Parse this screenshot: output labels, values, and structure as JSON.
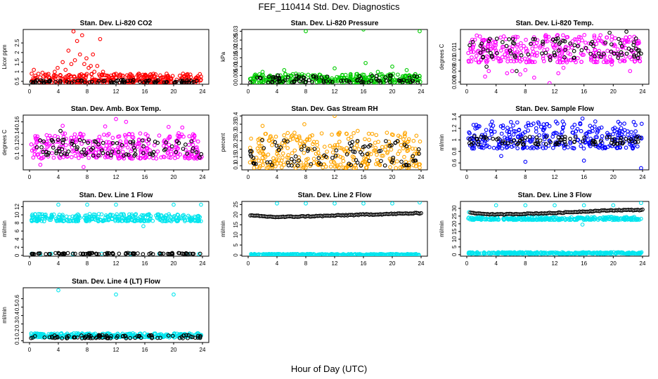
{
  "figure": {
    "title": "FEF_110414  Std. Dev. Diagnostics",
    "xlabel": "Hour of Day (UTC)"
  },
  "chart_data": [
    {
      "type": "scatter",
      "title": "Stan. Dev. Li-820 CO2",
      "ylabel": "Licor ppm",
      "xlim": [
        0,
        24
      ],
      "ylim": [
        0.35,
        3.2
      ],
      "xticks": [
        0,
        4,
        8,
        12,
        16,
        20,
        24
      ],
      "yticks": [
        0.5,
        1.0,
        1.5,
        2.0,
        2.5
      ],
      "series": [
        {
          "color": "#ff0000",
          "band": [
            0.4,
            0.9
          ],
          "points": [
            [
              0.3,
              0.9
            ],
            [
              0.6,
              1.1
            ],
            [
              1.8,
              0.95
            ],
            [
              2.2,
              0.8
            ],
            [
              2.8,
              0.7
            ],
            [
              3.5,
              1.0
            ],
            [
              3.9,
              1.2
            ],
            [
              4.3,
              0.8
            ],
            [
              4.6,
              1.5
            ],
            [
              5.0,
              1.1
            ],
            [
              5.4,
              2.1
            ],
            [
              5.8,
              1.4
            ],
            [
              6.1,
              3.1
            ],
            [
              6.3,
              1.6
            ],
            [
              6.6,
              2.6
            ],
            [
              7.0,
              1.9
            ],
            [
              7.3,
              2.9
            ],
            [
              7.6,
              1.4
            ],
            [
              7.9,
              1.7
            ],
            [
              8.2,
              1.2
            ],
            [
              8.5,
              1.3
            ],
            [
              8.8,
              1.9
            ],
            [
              9.0,
              1.0
            ],
            [
              9.4,
              1.3
            ],
            [
              9.8,
              2.7
            ],
            [
              10.2,
              1.0
            ],
            [
              10.8,
              0.8
            ],
            [
              11.3,
              0.8
            ],
            [
              12.5,
              0.7
            ],
            [
              13.2,
              0.6
            ],
            [
              14.0,
              0.7
            ],
            [
              15.1,
              0.65
            ],
            [
              16.3,
              0.7
            ],
            [
              17.5,
              0.6
            ],
            [
              18.3,
              0.7
            ],
            [
              19.6,
              0.6
            ],
            [
              21.0,
              0.6
            ],
            [
              22.2,
              0.6
            ],
            [
              23.4,
              0.55
            ],
            [
              23.8,
              0.75
            ]
          ]
        },
        {
          "color": "#000000",
          "band": [
            0.42,
            0.58
          ],
          "points": []
        }
      ]
    },
    {
      "type": "scatter",
      "title": "Stan. Dev. Li-820 Pressure",
      "ylabel": "kPa",
      "xlim": [
        0,
        24
      ],
      "ylim": [
        0,
        0.031
      ],
      "xticks": [
        0,
        4,
        8,
        12,
        16,
        20,
        24
      ],
      "yticks": [
        0.0,
        0.005,
        0.01,
        0.015,
        0.02,
        0.025,
        0.03
      ],
      "series": [
        {
          "color": "#00cc00",
          "band": [
            0.001,
            0.006
          ],
          "points": [
            [
              8.0,
              0.03
            ],
            [
              16.0,
              0.031
            ],
            [
              23.8,
              0.03
            ],
            [
              16.3,
              0.012
            ],
            [
              20.0,
              0.01
            ],
            [
              5.0,
              0.008
            ],
            [
              12.0,
              0.009
            ],
            [
              18.0,
              0.007
            ],
            [
              22.0,
              0.008
            ],
            [
              2.0,
              0.007
            ]
          ]
        },
        {
          "color": "#000000",
          "band": [
            0.001,
            0.005
          ],
          "points": []
        }
      ]
    },
    {
      "type": "scatter",
      "title": "Stan. Dev. Li-820 Temp.",
      "ylabel": "degrees C",
      "xlim": [
        0,
        24
      ],
      "ylim": [
        0.0078,
        0.0128
      ],
      "xticks": [
        0,
        4,
        8,
        12,
        16,
        20,
        24
      ],
      "yticks": [
        0.008,
        0.009,
        0.01,
        0.011
      ],
      "series": [
        {
          "color": "#ff00ff",
          "band": [
            0.0098,
            0.0123
          ],
          "points": [
            [
              2.5,
              0.0085
            ],
            [
              3.0,
              0.009
            ],
            [
              5.5,
              0.0088
            ],
            [
              6.2,
              0.009
            ],
            [
              8.0,
              0.0091
            ],
            [
              9.2,
              0.0084
            ],
            [
              11.3,
              0.0079
            ],
            [
              12.5,
              0.0088
            ],
            [
              19.8,
              0.0096
            ],
            [
              22.3,
              0.009
            ],
            [
              13.2,
              0.0093
            ],
            [
              7.3,
              0.0087
            ]
          ]
        },
        {
          "color": "#000000",
          "band": [
            0.0102,
            0.012
          ],
          "points": [
            [
              2.7,
              0.0094
            ],
            [
              6.8,
              0.009
            ],
            [
              19.5,
              0.0125
            ],
            [
              21.8,
              0.0126
            ],
            [
              3.4,
              0.0104
            ],
            [
              11.4,
              0.01
            ]
          ]
        }
      ]
    },
    {
      "type": "scatter",
      "title": "Stan. Dev. Amb. Box Temp.",
      "ylabel": "degrees C",
      "xlim": [
        0,
        24
      ],
      "ylim": [
        0.075,
        0.172
      ],
      "xticks": [
        0,
        4,
        8,
        12,
        16,
        20,
        24
      ],
      "yticks": [
        0.1,
        0.12,
        0.14,
        0.16
      ],
      "series": [
        {
          "color": "#ff00ff",
          "band": [
            0.095,
            0.14
          ],
          "points": [
            [
              7.5,
              0.08
            ],
            [
              12.0,
              0.165
            ],
            [
              13.4,
              0.16
            ],
            [
              4.6,
              0.153
            ],
            [
              10.5,
              0.152
            ],
            [
              21.2,
              0.15
            ],
            [
              19.3,
              0.151
            ],
            [
              1.5,
              0.084
            ]
          ]
        },
        {
          "color": "#000000",
          "band": [
            0.1,
            0.13
          ],
          "points": [
            [
              4.3,
              0.144
            ],
            [
              23.6,
              0.097
            ]
          ]
        }
      ]
    },
    {
      "type": "scatter",
      "title": "Stan. Dev. Gas Stream RH",
      "ylabel": "percent",
      "xlim": [
        0,
        24
      ],
      "ylim": [
        0.075,
        0.405
      ],
      "xticks": [
        0,
        4,
        8,
        12,
        16,
        20,
        24
      ],
      "yticks": [
        0.1,
        0.15,
        0.2,
        0.25,
        0.3,
        0.35,
        0.4
      ],
      "series": [
        {
          "color": "#ffa500",
          "band": [
            0.085,
            0.3
          ],
          "points": [
            [
              12.0,
              0.4
            ],
            [
              2.0,
              0.34
            ],
            [
              7.8,
              0.35
            ],
            [
              15.2,
              0.31
            ]
          ]
        },
        {
          "color": "#000000",
          "band": [
            0.1,
            0.26
          ],
          "points": []
        }
      ]
    },
    {
      "type": "scatter",
      "title": "Stan. Dev. Sample Flow",
      "ylabel": "ml/min",
      "xlim": [
        0,
        24
      ],
      "ylim": [
        0.48,
        1.43
      ],
      "xticks": [
        0,
        4,
        8,
        12,
        16,
        20,
        24
      ],
      "yticks": [
        0.6,
        0.8,
        1.0,
        1.2,
        1.4
      ],
      "series": [
        {
          "color": "#0000ff",
          "band": [
            0.85,
            1.32
          ],
          "points": [
            [
              23.8,
              0.51
            ],
            [
              8.0,
              0.62
            ],
            [
              16.0,
              0.64
            ],
            [
              15.8,
              1.37
            ],
            [
              4.7,
              0.72
            ]
          ]
        },
        {
          "color": "#000000",
          "band": [
            0.92,
            1.06
          ],
          "points": []
        }
      ]
    },
    {
      "type": "scatter",
      "title": "Stan. Dev. Line 1 Flow",
      "ylabel": "ml/min",
      "xlim": [
        0,
        24
      ],
      "ylim": [
        -0.2,
        13.3
      ],
      "xticks": [
        0,
        4,
        8,
        12,
        16,
        20,
        24
      ],
      "yticks": [
        0,
        2,
        4,
        6,
        8,
        10,
        12
      ],
      "series": [
        {
          "color": "#00e5ee",
          "band": [
            8.4,
            10.2
          ],
          "points": [
            [
              4.0,
              12.5
            ],
            [
              8.0,
              12.5
            ],
            [
              12.0,
              12.5
            ],
            [
              20.0,
              12.5
            ],
            [
              23.8,
              12.5
            ],
            [
              15.8,
              7.2
            ],
            [
              0.3,
              0.4
            ],
            [
              1.5,
              0.3
            ],
            [
              3.0,
              0.4
            ],
            [
              6.0,
              0.3
            ],
            [
              10.0,
              0.4
            ],
            [
              14.0,
              0.3
            ],
            [
              18.0,
              0.4
            ],
            [
              22.0,
              0.35
            ],
            [
              23.5,
              0.3
            ]
          ]
        },
        {
          "color": "#000000",
          "band": [
            0.3,
            0.6
          ],
          "points": []
        }
      ]
    },
    {
      "type": "scatter",
      "title": "Stan. Dev. Line 2 Flow",
      "ylabel": "ml/min",
      "xlim": [
        0,
        24
      ],
      "ylim": [
        -0.5,
        26.5
      ],
      "xticks": [
        0,
        4,
        8,
        12,
        16,
        20,
        24
      ],
      "yticks": [
        0,
        5,
        10,
        15,
        20,
        25
      ],
      "series": [
        {
          "color": "#00e5ee",
          "band": [
            0.0,
            0.6
          ],
          "points": [
            [
              4.0,
              25.5
            ],
            [
              8.0,
              25.5
            ],
            [
              12.0,
              25.5
            ],
            [
              16.0,
              25.5
            ],
            [
              20.0,
              25.5
            ],
            [
              23.8,
              26.0
            ]
          ]
        },
        {
          "color": "#000000",
          "trend": [
            [
              0.3,
              19.5
            ],
            [
              4.0,
              18.8
            ],
            [
              10.0,
              19.3
            ],
            [
              16.0,
              20.0
            ],
            [
              24.0,
              20.7
            ]
          ],
          "jitter": 0.5,
          "points": []
        }
      ]
    },
    {
      "type": "scatter",
      "title": "Stan. Dev. Line 3 Flow",
      "ylabel": "ml/min",
      "xlim": [
        0,
        24
      ],
      "ylim": [
        -1,
        34.5
      ],
      "xticks": [
        0,
        4,
        8,
        12,
        16,
        20,
        24
      ],
      "yticks": [
        0,
        5,
        10,
        15,
        20,
        25,
        30
      ],
      "series": [
        {
          "color": "#00e5ee",
          "band": [
            22.5,
            24.5
          ],
          "points": [
            [
              4.0,
              32.0
            ],
            [
              8.0,
              32.0
            ],
            [
              12.0,
              32.0
            ],
            [
              16.0,
              32.0
            ],
            [
              20.0,
              32.0
            ],
            [
              23.8,
              33.5
            ],
            [
              15.8,
              19.5
            ],
            [
              0.3,
              27.5
            ]
          ]
        },
        {
          "color": "#00e5ee",
          "band": [
            0.5,
            1.6
          ],
          "points": []
        },
        {
          "color": "#000000",
          "trend": [
            [
              0.5,
              27.0
            ],
            [
              4.0,
              26.0
            ],
            [
              8.0,
              26.5
            ],
            [
              12.0,
              27.0
            ],
            [
              16.0,
              28.0
            ],
            [
              20.0,
              28.8
            ],
            [
              24.0,
              29.0
            ]
          ],
          "jitter": 0.6,
          "points": []
        }
      ]
    },
    {
      "type": "scatter",
      "title": "Stan. Dev. Line 4 (LT) Flow",
      "ylabel": "ml/min",
      "xlim": [
        0,
        24
      ],
      "ylim": [
        0.08,
        0.73
      ],
      "xticks": [
        0,
        4,
        8,
        12,
        16,
        20,
        24
      ],
      "yticks": [
        0.1,
        0.2,
        0.3,
        0.4,
        0.5,
        0.6
      ],
      "series": [
        {
          "color": "#00e5ee",
          "band": [
            0.14,
            0.19
          ],
          "points": [
            [
              4.0,
              0.7
            ],
            [
              12.0,
              0.65
            ],
            [
              20.0,
              0.65
            ]
          ]
        },
        {
          "color": "#000000",
          "band": [
            0.13,
            0.17
          ],
          "points": []
        }
      ]
    }
  ]
}
